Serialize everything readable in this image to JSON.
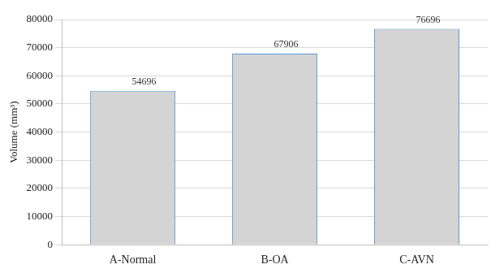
{
  "chart_data": {
    "type": "bar",
    "categories": [
      "A-Normal",
      "B-OA",
      "C-AVN"
    ],
    "values": [
      54696,
      67906,
      76696
    ],
    "color": "#d4d4d4",
    "y_label": "Volume (mm³)",
    "ylim": [
      0,
      80000
    ],
    "yticks": [
      0,
      10000,
      20000,
      30000,
      40000,
      50000,
      60000,
      70000,
      80000
    ],
    "grid": true,
    "data_labels": true
  }
}
